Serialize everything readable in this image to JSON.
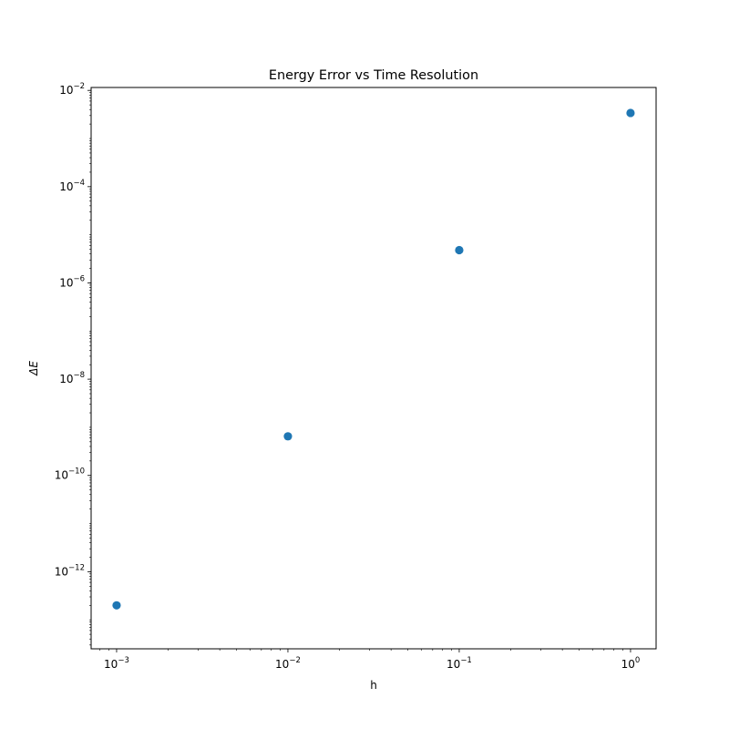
{
  "chart_data": {
    "type": "scatter",
    "title": "Energy Error vs Time Resolution",
    "xlabel": "h",
    "ylabel": "ΔE",
    "xscale": "log",
    "yscale": "log",
    "xlim": [
      0.00071,
      1.41
    ],
    "ylim": [
      2.5e-14,
      0.0115
    ],
    "grid": false,
    "color": "#1f77b4",
    "x": [
      0.001,
      0.01,
      0.1,
      1
    ],
    "y": [
      2e-13,
      6.5e-10,
      4.8e-06,
      0.0034
    ],
    "x_ticks": [
      {
        "value": 0.001,
        "base": "10",
        "exp": "−3"
      },
      {
        "value": 0.01,
        "base": "10",
        "exp": "−2"
      },
      {
        "value": 0.1,
        "base": "10",
        "exp": "−1"
      },
      {
        "value": 1,
        "base": "10",
        "exp": "0"
      }
    ],
    "y_ticks": [
      {
        "value": 1e-12,
        "base": "10",
        "exp": "−12"
      },
      {
        "value": 1e-10,
        "base": "10",
        "exp": "−10"
      },
      {
        "value": 1e-08,
        "base": "10",
        "exp": "−8"
      },
      {
        "value": 1e-06,
        "base": "10",
        "exp": "−6"
      },
      {
        "value": 0.0001,
        "base": "10",
        "exp": "−4"
      },
      {
        "value": 0.01,
        "base": "10",
        "exp": "−2"
      }
    ]
  }
}
